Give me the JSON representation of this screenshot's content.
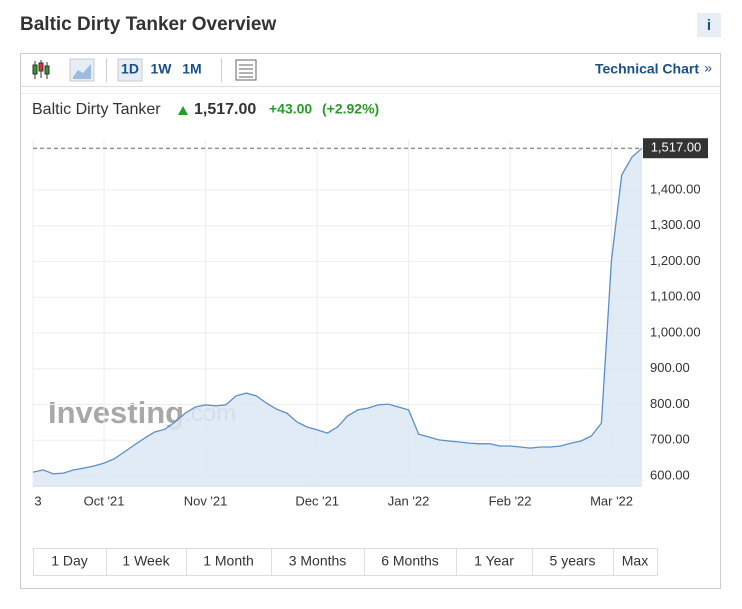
{
  "header": {
    "title": "Baltic Dirty Tanker Overview",
    "info": "i"
  },
  "toolbar": {
    "intervals": [
      "1D",
      "1W",
      "1M"
    ],
    "link": "Technical Chart",
    "link_arrow": "»"
  },
  "quote": {
    "name": "Baltic Dirty Tanker",
    "last": "1,517.00",
    "change": "+43.00",
    "change_pct": "(+2.92%)"
  },
  "watermark": {
    "brand": "Investing",
    "domain": ".com"
  },
  "ranges": [
    "1 Day",
    "1 Week",
    "1 Month",
    "3 Months",
    "6 Months",
    "1 Year",
    "5 years",
    "Max"
  ],
  "chart_data": {
    "type": "area",
    "color": "#5b8fc7",
    "categories": [
      "3",
      null,
      null,
      null,
      null,
      null,
      null,
      "Oct '21",
      null,
      null,
      null,
      null,
      null,
      null,
      null,
      null,
      null,
      "Nov '21",
      null,
      null,
      null,
      null,
      null,
      null,
      null,
      null,
      null,
      null,
      "Dec '21",
      null,
      null,
      null,
      null,
      null,
      null,
      null,
      null,
      "Jan '22",
      null,
      null,
      null,
      null,
      null,
      null,
      null,
      null,
      null,
      "Feb '22",
      null,
      null,
      null,
      null,
      null,
      null,
      null,
      null,
      null,
      "Mar '22",
      null,
      null,
      null
    ],
    "values": [
      611,
      617,
      606,
      608,
      617,
      622,
      628,
      636,
      648,
      667,
      687,
      706,
      723,
      731,
      751,
      776,
      793,
      799,
      796,
      799,
      824,
      832,
      824,
      804,
      787,
      776,
      751,
      737,
      729,
      720,
      737,
      768,
      785,
      790,
      799,
      801,
      793,
      785,
      717,
      709,
      701,
      698,
      695,
      692,
      690,
      690,
      684,
      684,
      681,
      678,
      681,
      681,
      684,
      692,
      698,
      712,
      748,
      1204,
      1442,
      1492,
      1517
    ],
    "ylim": [
      572,
      1540
    ],
    "yticks": [
      {
        "value": 600,
        "label": "600.00"
      },
      {
        "value": 700,
        "label": "700.00"
      },
      {
        "value": 800,
        "label": "800.00"
      },
      {
        "value": 900,
        "label": "900.00"
      },
      {
        "value": 1000,
        "label": "1,000.00"
      },
      {
        "value": 1100,
        "label": "1,100.00"
      },
      {
        "value": 1200,
        "label": "1,200.00"
      },
      {
        "value": 1300,
        "label": "1,300.00"
      },
      {
        "value": 1400,
        "label": "1,400.00"
      }
    ],
    "last_value": {
      "value": 1517,
      "label": "1,517.00"
    },
    "grid": true
  }
}
